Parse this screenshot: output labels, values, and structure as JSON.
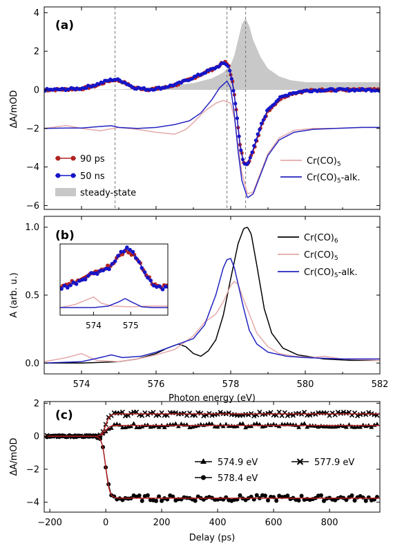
{
  "chart_data": [
    {
      "panel": "(a)",
      "type": "line",
      "ylabel": "ΔA/mOD",
      "xlim": [
        573,
        582
      ],
      "ylim": [
        -6.2,
        4.3
      ],
      "yticks": [
        "4",
        "2",
        "0",
        "−2",
        "−4",
        "−6"
      ],
      "ytick_values": [
        4,
        2,
        0,
        -2,
        -4,
        -6
      ],
      "vlines": [
        574.9,
        577.9,
        578.4
      ],
      "legend_left": [
        "90 ps",
        "50 ns",
        "steady-state"
      ],
      "legend_right": [
        "Cr(CO)5",
        "Cr(CO)5-alk."
      ],
      "colors": {
        "ps90": "#b22222",
        "ns50": "#1515c8",
        "steady": "#c8c8c8",
        "crco5": "#e5a8a8",
        "alk": "#2222c0"
      },
      "series": [
        {
          "name": "90 ps",
          "x": [
            573.0,
            573.5,
            574.0,
            574.4,
            574.7,
            574.9,
            575.1,
            575.4,
            575.8,
            576.2,
            576.6,
            577.0,
            577.3,
            577.6,
            577.75,
            577.85,
            577.95,
            578.05,
            578.15,
            578.25,
            578.35,
            578.45,
            578.6,
            578.8,
            579.0,
            579.3,
            579.6,
            580.0,
            580.5,
            581.0,
            581.5,
            582.0
          ],
          "y": [
            0.0,
            0.02,
            0.06,
            0.22,
            0.45,
            0.52,
            0.42,
            0.12,
            0.02,
            0.1,
            0.3,
            0.62,
            0.88,
            1.15,
            1.35,
            1.42,
            1.25,
            0.4,
            -1.0,
            -2.8,
            -3.8,
            -3.9,
            -3.2,
            -2.0,
            -1.1,
            -0.5,
            -0.2,
            -0.06,
            0.0,
            0.0,
            0.0,
            0.0
          ]
        },
        {
          "name": "50 ns",
          "x": [
            573.0,
            573.5,
            574.0,
            574.4,
            574.7,
            574.9,
            575.1,
            575.4,
            575.8,
            576.2,
            576.6,
            577.0,
            577.3,
            577.6,
            577.75,
            577.85,
            577.95,
            578.05,
            578.15,
            578.25,
            578.35,
            578.45,
            578.6,
            578.8,
            579.0,
            579.3,
            579.6,
            580.0,
            580.5,
            581.0,
            581.5,
            582.0
          ],
          "y": [
            0.0,
            0.02,
            0.08,
            0.28,
            0.48,
            0.55,
            0.45,
            0.12,
            0.02,
            0.12,
            0.32,
            0.64,
            0.9,
            1.15,
            1.32,
            1.38,
            1.2,
            0.35,
            -1.05,
            -2.9,
            -3.85,
            -3.85,
            -3.1,
            -1.9,
            -1.0,
            -0.45,
            -0.18,
            -0.05,
            0.0,
            0.0,
            0.0,
            0.0
          ]
        },
        {
          "name": "steady-state",
          "x": [
            573.0,
            575.0,
            576.0,
            577.0,
            577.5,
            577.8,
            578.0,
            578.1,
            578.2,
            578.3,
            578.4,
            578.5,
            578.6,
            578.8,
            579.0,
            579.3,
            579.6,
            580.0,
            582.0
          ],
          "y": [
            0.0,
            0.02,
            0.15,
            0.35,
            0.6,
            0.9,
            1.3,
            1.8,
            2.6,
            3.4,
            3.7,
            3.3,
            2.6,
            1.7,
            1.1,
            0.7,
            0.5,
            0.4,
            0.4
          ]
        },
        {
          "name": "Cr(CO)5",
          "x": [
            573.0,
            573.6,
            574.0,
            574.5,
            575.0,
            575.5,
            576.0,
            576.5,
            576.8,
            577.0,
            577.3,
            577.6,
            577.8,
            578.0,
            578.1,
            578.2,
            578.3,
            578.45,
            578.6,
            578.8,
            579.0,
            579.3,
            579.7,
            580.2,
            580.8,
            581.5,
            582.0
          ],
          "y": [
            -2.0,
            -1.85,
            -2.0,
            -2.12,
            -1.95,
            -2.05,
            -2.2,
            -2.3,
            -2.05,
            -1.7,
            -1.1,
            -0.7,
            -0.55,
            -0.7,
            -1.5,
            -2.9,
            -4.3,
            -5.4,
            -5.3,
            -4.3,
            -3.3,
            -2.5,
            -2.1,
            -2.0,
            -2.0,
            -1.95,
            -1.95
          ]
        },
        {
          "name": "Cr(CO)5-alk.",
          "x": [
            573.0,
            573.6,
            574.0,
            574.5,
            574.8,
            575.0,
            575.5,
            576.0,
            576.5,
            576.9,
            577.2,
            577.5,
            577.7,
            577.9,
            578.0,
            578.1,
            578.2,
            578.3,
            578.45,
            578.6,
            578.8,
            579.0,
            579.3,
            579.7,
            580.2,
            580.8,
            581.5,
            582.0
          ],
          "y": [
            -2.0,
            -1.98,
            -1.98,
            -1.9,
            -1.86,
            -1.95,
            -2.0,
            -1.95,
            -1.8,
            -1.6,
            -1.2,
            -0.5,
            0.1,
            0.45,
            0.1,
            -1.3,
            -3.2,
            -4.7,
            -5.6,
            -5.4,
            -4.4,
            -3.4,
            -2.6,
            -2.2,
            -2.05,
            -2.0,
            -1.95,
            -1.95
          ]
        }
      ]
    },
    {
      "panel": "(b)",
      "type": "line",
      "ylabel": "A (arb. u.)",
      "xlabel": "Photon energy (eV)",
      "xlim": [
        573,
        582
      ],
      "ylim": [
        -0.08,
        1.08
      ],
      "yticks": [
        "1.0",
        "0.5",
        "0.0"
      ],
      "ytick_values": [
        1.0,
        0.5,
        0.0
      ],
      "xticks": [
        "574",
        "576",
        "578",
        "580",
        "582"
      ],
      "xtick_values": [
        574,
        576,
        578,
        580,
        582
      ],
      "legend": [
        "Cr(CO)6",
        "Cr(CO)5",
        "Cr(CO)5-alk."
      ],
      "colors": {
        "crco6": "#000000",
        "crco5": "#e5a8a8",
        "alk": "#2222c0"
      },
      "series": [
        {
          "name": "Cr(CO)6",
          "x": [
            573.0,
            574.0,
            575.0,
            575.5,
            576.0,
            576.3,
            576.6,
            576.8,
            577.0,
            577.2,
            577.4,
            577.6,
            577.8,
            578.0,
            578.2,
            578.35,
            578.45,
            578.55,
            578.7,
            578.9,
            579.1,
            579.4,
            579.8,
            580.5,
            581.2,
            582.0
          ],
          "y": [
            0.0,
            0.0,
            0.01,
            0.03,
            0.07,
            0.11,
            0.14,
            0.12,
            0.07,
            0.05,
            0.09,
            0.17,
            0.35,
            0.62,
            0.88,
            0.99,
            1.0,
            0.95,
            0.72,
            0.4,
            0.22,
            0.11,
            0.06,
            0.03,
            0.02,
            0.02
          ]
        },
        {
          "name": "Cr(CO)5",
          "x": [
            573.0,
            573.6,
            574.0,
            574.4,
            575.0,
            575.5,
            576.0,
            576.5,
            577.0,
            577.3,
            577.6,
            577.8,
            578.0,
            578.1,
            578.2,
            578.3,
            578.5,
            578.7,
            579.0,
            579.3,
            579.7,
            580.2,
            580.5,
            581.0,
            582.0
          ],
          "y": [
            0.01,
            0.04,
            0.07,
            0.02,
            0.01,
            0.03,
            0.06,
            0.1,
            0.2,
            0.3,
            0.36,
            0.45,
            0.57,
            0.6,
            0.58,
            0.5,
            0.36,
            0.22,
            0.12,
            0.07,
            0.05,
            0.04,
            0.05,
            0.03,
            0.02
          ]
        },
        {
          "name": "Cr(CO)5-alk.",
          "x": [
            573.0,
            574.0,
            574.5,
            574.8,
            575.1,
            575.6,
            576.0,
            576.4,
            576.7,
            577.0,
            577.3,
            577.6,
            577.8,
            577.9,
            578.0,
            578.1,
            578.2,
            578.35,
            578.5,
            578.7,
            579.0,
            579.5,
            580.0,
            581.0,
            582.0
          ],
          "y": [
            0.0,
            0.01,
            0.04,
            0.06,
            0.04,
            0.05,
            0.08,
            0.12,
            0.15,
            0.18,
            0.28,
            0.5,
            0.7,
            0.76,
            0.77,
            0.7,
            0.58,
            0.4,
            0.24,
            0.14,
            0.08,
            0.05,
            0.04,
            0.03,
            0.03
          ]
        }
      ],
      "inset": {
        "xlim": [
          573.1,
          576.0
        ],
        "xticks": [
          "574",
          "575"
        ],
        "xtick_values": [
          574,
          575
        ],
        "series": [
          {
            "name": "90 ps",
            "x": [
              573.1,
              573.4,
              573.7,
              574.0,
              574.3,
              574.5,
              574.7,
              574.85,
              575.0,
              575.2,
              575.4,
              575.6,
              575.8,
              576.0
            ],
            "y": [
              0.52,
              0.54,
              0.58,
              0.62,
              0.64,
              0.66,
              0.72,
              0.75,
              0.74,
              0.7,
              0.6,
              0.54,
              0.52,
              0.52
            ]
          },
          {
            "name": "50 ns",
            "x": [
              573.1,
              573.4,
              573.7,
              574.0,
              574.3,
              574.5,
              574.7,
              574.85,
              575.0,
              575.2,
              575.4,
              575.6,
              575.8,
              576.0
            ],
            "y": [
              0.51,
              0.53,
              0.57,
              0.61,
              0.63,
              0.66,
              0.73,
              0.77,
              0.75,
              0.7,
              0.59,
              0.53,
              0.51,
              0.51
            ]
          },
          {
            "name": "Cr(CO)5",
            "x": [
              573.1,
              573.5,
              573.8,
              574.0,
              574.2,
              574.5,
              575.0,
              575.5,
              576.0
            ],
            "y": [
              0.38,
              0.4,
              0.43,
              0.45,
              0.41,
              0.39,
              0.385,
              0.39,
              0.39
            ]
          },
          {
            "name": "Cr(CO)5-alk.",
            "x": [
              573.1,
              574.0,
              574.4,
              574.7,
              574.85,
              575.0,
              575.3,
              575.6,
              576.0
            ],
            "y": [
              0.38,
              0.38,
              0.39,
              0.42,
              0.44,
              0.42,
              0.385,
              0.38,
              0.38
            ]
          }
        ]
      }
    },
    {
      "panel": "(c)",
      "type": "scatter",
      "ylabel": "ΔA/mOD",
      "xlabel": "Delay (ps)",
      "xlim": [
        -220,
        980
      ],
      "ylim": [
        -4.6,
        2.1
      ],
      "yticks": [
        "2",
        "0",
        "−2",
        "−4"
      ],
      "ytick_values": [
        2,
        0,
        -2,
        -4
      ],
      "xticks": [
        "−200",
        "0",
        "200",
        "400",
        "600",
        "800"
      ],
      "xtick_values": [
        -200,
        0,
        200,
        400,
        600,
        800
      ],
      "legend": [
        "574.9 eV",
        "577.9 eV",
        "578.4 eV"
      ],
      "colors": {
        "data": "#000000",
        "fit": "#b22222"
      },
      "series": [
        {
          "name": "574.9 eV",
          "marker": "triangle",
          "plateau": 0.65,
          "t0": 0
        },
        {
          "name": "577.9 eV",
          "marker": "x",
          "plateau": 1.35,
          "t0": 0
        },
        {
          "name": "578.4 eV",
          "marker": "circle",
          "plateau": -3.75,
          "t0": 0
        }
      ]
    }
  ]
}
